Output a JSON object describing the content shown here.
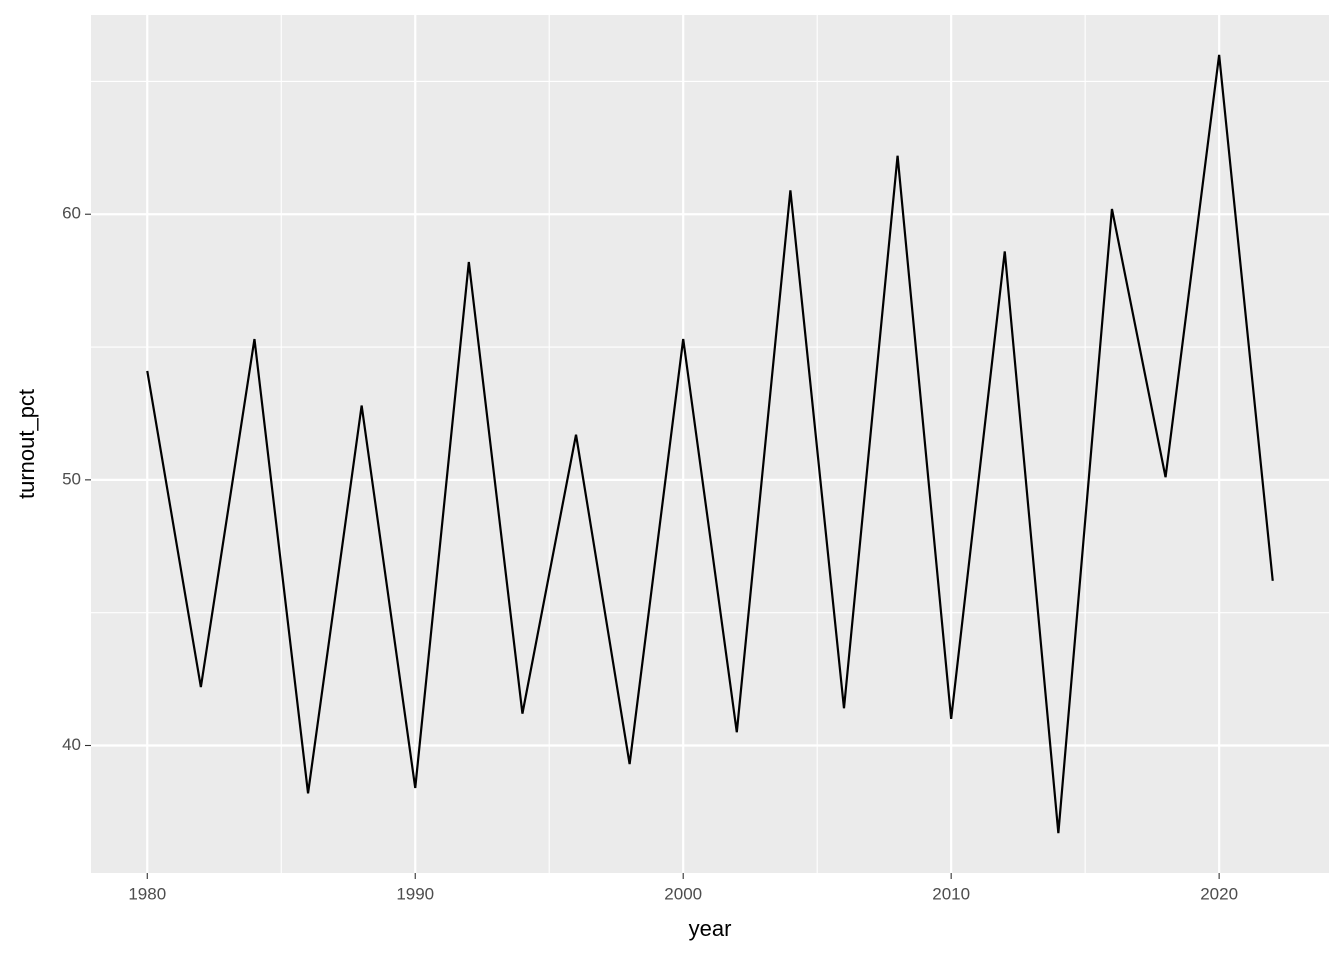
{
  "chart_data": {
    "type": "line",
    "x_label": "year",
    "y_label": "turnout_pct",
    "x": [
      1980,
      1982,
      1984,
      1986,
      1988,
      1990,
      1992,
      1994,
      1996,
      1998,
      2000,
      2002,
      2004,
      2006,
      2008,
      2010,
      2012,
      2014,
      2016,
      2018,
      2020,
      2022
    ],
    "series": [
      {
        "color": "#000000",
        "values": [
          54.1,
          42.2,
          55.3,
          38.2,
          52.8,
          38.4,
          58.2,
          41.2,
          51.7,
          39.3,
          55.3,
          40.5,
          60.9,
          41.4,
          62.2,
          41.0,
          58.6,
          36.7,
          60.2,
          50.1,
          66.0,
          46.2
        ]
      }
    ],
    "xlim": [
      1977.9,
      2024.1
    ],
    "ylim": [
      35.2,
      67.5
    ],
    "xticks": [
      1980,
      1990,
      2000,
      2010,
      2020
    ],
    "yticks": [
      40,
      50,
      60
    ],
    "minor_xticks": [
      1985,
      1995,
      2005,
      2015
    ],
    "minor_yticks": [
      45,
      55,
      65
    ],
    "grid": true,
    "panel_color": "#ebebeb"
  }
}
